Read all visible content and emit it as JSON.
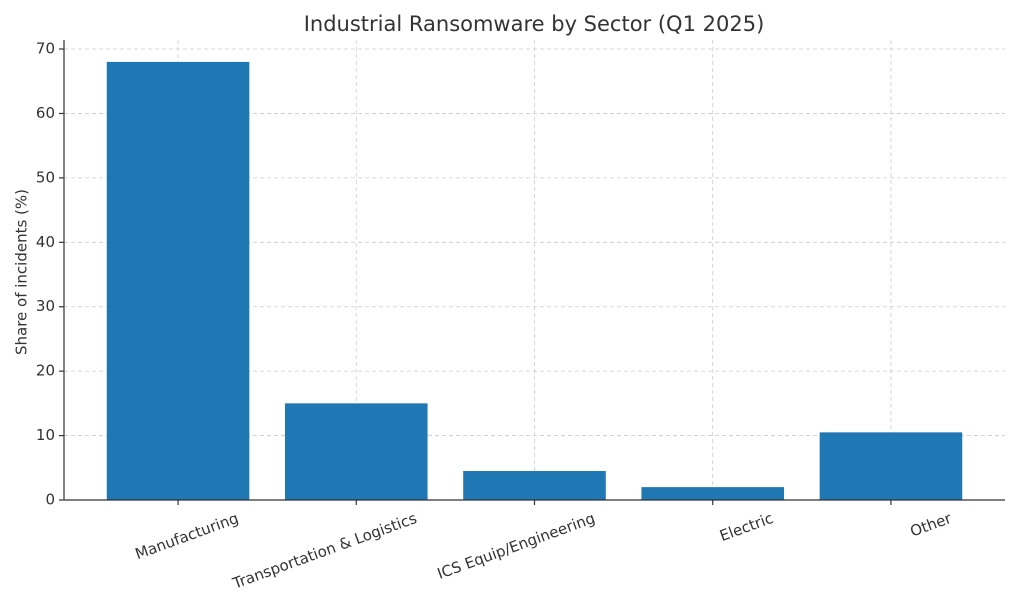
{
  "chart_data": {
    "type": "bar",
    "title": "Industrial Ransomware by Sector (Q1 2025)",
    "y_label": "Share of incidents (%)",
    "categories": [
      "Manufacturing",
      "Transportation & Logistics",
      "ICS Equip/Engineering",
      "Electric",
      "Other"
    ],
    "values": [
      68,
      15,
      4.5,
      2,
      10.5
    ],
    "color": "#1f77b4",
    "ylim": [
      0,
      71.4
    ],
    "yticks": [
      0,
      10,
      20,
      30,
      40,
      50,
      60,
      70
    ],
    "grid": true
  }
}
